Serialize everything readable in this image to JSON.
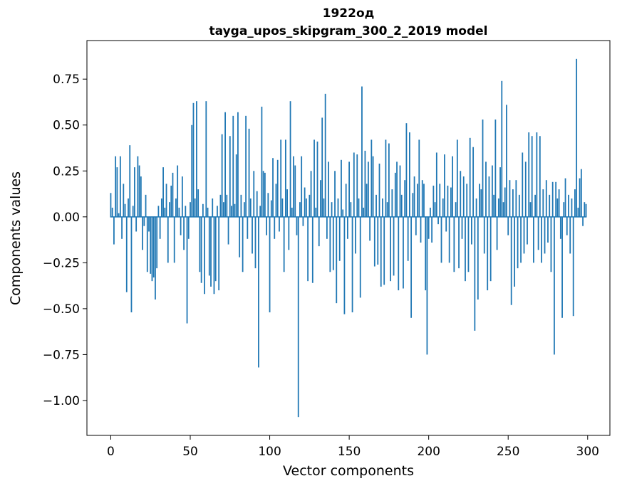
{
  "chart_data": {
    "type": "bar",
    "title_line1": "1922од",
    "title_line2": "tayga_upos_skipgram_300_2_2019 model",
    "xlabel": "Vector components",
    "ylabel": "Components values",
    "xlim": [
      -15,
      314
    ],
    "ylim": [
      -1.19,
      0.96
    ],
    "grid": false,
    "legend": "none",
    "bar_color": "#1f77b4",
    "x_start": 0,
    "xticks": [
      {
        "value": 0,
        "label": "0"
      },
      {
        "value": 50,
        "label": "50"
      },
      {
        "value": 100,
        "label": "100"
      },
      {
        "value": 150,
        "label": "150"
      },
      {
        "value": 200,
        "label": "200"
      },
      {
        "value": 250,
        "label": "250"
      },
      {
        "value": 300,
        "label": "300"
      }
    ],
    "yticks": [
      {
        "value": -1.0,
        "label": "−1.00"
      },
      {
        "value": -0.75,
        "label": "−0.75"
      },
      {
        "value": -0.5,
        "label": "−0.50"
      },
      {
        "value": -0.25,
        "label": "−0.25"
      },
      {
        "value": 0.0,
        "label": "0.00"
      },
      {
        "value": 0.25,
        "label": "0.25"
      },
      {
        "value": 0.5,
        "label": "0.50"
      },
      {
        "value": 0.75,
        "label": "0.75"
      }
    ],
    "values": [
      0.13,
      0.05,
      -0.15,
      0.33,
      0.27,
      0.02,
      0.33,
      -0.12,
      0.18,
      0.07,
      -0.41,
      0.1,
      0.39,
      -0.52,
      0.06,
      0.27,
      -0.08,
      0.33,
      0.28,
      0.22,
      -0.18,
      -0.05,
      0.12,
      -0.3,
      -0.08,
      -0.31,
      -0.35,
      -0.33,
      -0.45,
      -0.28,
      0.06,
      -0.12,
      0.1,
      0.27,
      0.05,
      0.18,
      -0.25,
      0.08,
      0.17,
      0.24,
      -0.25,
      0.1,
      0.28,
      0.05,
      -0.1,
      0.22,
      -0.18,
      0.06,
      -0.58,
      -0.12,
      0.08,
      0.5,
      0.62,
      0.1,
      0.63,
      0.15,
      -0.3,
      -0.36,
      0.07,
      -0.42,
      0.63,
      0.05,
      -0.32,
      -0.38,
      0.1,
      -0.42,
      -0.35,
      0.06,
      -0.4,
      0.12,
      0.45,
      0.08,
      0.57,
      0.12,
      -0.15,
      0.44,
      0.06,
      0.55,
      0.07,
      0.34,
      0.57,
      -0.22,
      0.12,
      -0.3,
      0.08,
      0.55,
      -0.12,
      0.48,
      0.1,
      -0.2,
      0.25,
      -0.28,
      0.14,
      -0.82,
      0.06,
      0.6,
      0.25,
      0.24,
      -0.1,
      0.13,
      -0.52,
      0.09,
      0.32,
      -0.12,
      0.18,
      0.31,
      -0.08,
      0.42,
      0.1,
      -0.3,
      0.42,
      0.15,
      -0.18,
      0.63,
      0.05,
      0.33,
      0.28,
      -0.1,
      -1.09,
      0.08,
      0.33,
      -0.05,
      0.16,
      0.1,
      -0.35,
      0.12,
      0.25,
      -0.36,
      0.42,
      0.05,
      0.41,
      -0.16,
      0.2,
      0.54,
      0.1,
      0.67,
      -0.12,
      0.3,
      -0.3,
      0.08,
      -0.29,
      0.25,
      -0.47,
      0.1,
      -0.24,
      0.31,
      0.04,
      -0.53,
      0.18,
      -0.12,
      0.3,
      0.08,
      -0.52,
      0.35,
      -0.2,
      0.34,
      0.1,
      -0.44,
      0.71,
      0.05,
      0.36,
      0.18,
      0.3,
      -0.13,
      0.42,
      0.33,
      -0.27,
      0.12,
      -0.26,
      0.29,
      -0.38,
      0.1,
      -0.37,
      0.42,
      0.08,
      0.4,
      -0.35,
      0.15,
      -0.32,
      0.24,
      0.3,
      -0.4,
      0.28,
      0.12,
      -0.39,
      0.2,
      0.51,
      -0.24,
      0.46,
      -0.55,
      0.13,
      0.22,
      -0.1,
      0.18,
      0.42,
      -0.14,
      0.2,
      0.18,
      -0.4,
      -0.75,
      -0.12,
      0.05,
      -0.14,
      0.17,
      0.08,
      0.35,
      -0.04,
      0.18,
      -0.25,
      0.1,
      0.34,
      -0.08,
      0.17,
      -0.25,
      0.16,
      0.33,
      -0.3,
      0.08,
      0.42,
      -0.28,
      0.25,
      -0.12,
      0.22,
      -0.35,
      0.18,
      -0.3,
      0.43,
      -0.15,
      0.38,
      -0.62,
      0.1,
      -0.45,
      0.18,
      0.15,
      0.53,
      -0.2,
      0.3,
      -0.4,
      0.22,
      -0.35,
      0.28,
      0.12,
      0.53,
      -0.18,
      0.1,
      0.27,
      0.74,
      0.08,
      0.16,
      0.61,
      -0.1,
      0.2,
      -0.48,
      0.15,
      -0.38,
      0.2,
      -0.28,
      0.12,
      -0.25,
      0.35,
      -0.2,
      0.3,
      -0.15,
      0.46,
      0.08,
      0.44,
      -0.25,
      0.12,
      0.46,
      -0.18,
      0.44,
      -0.25,
      0.15,
      -0.2,
      0.2,
      -0.14,
      0.12,
      -0.3,
      0.19,
      -0.75,
      0.19,
      0.1,
      0.15,
      -0.12,
      -0.55,
      0.08,
      0.21,
      -0.1,
      0.12,
      -0.2,
      0.1,
      -0.54,
      0.15,
      0.86,
      0.05,
      0.21,
      0.26,
      -0.05,
      0.08,
      0.07
    ]
  }
}
